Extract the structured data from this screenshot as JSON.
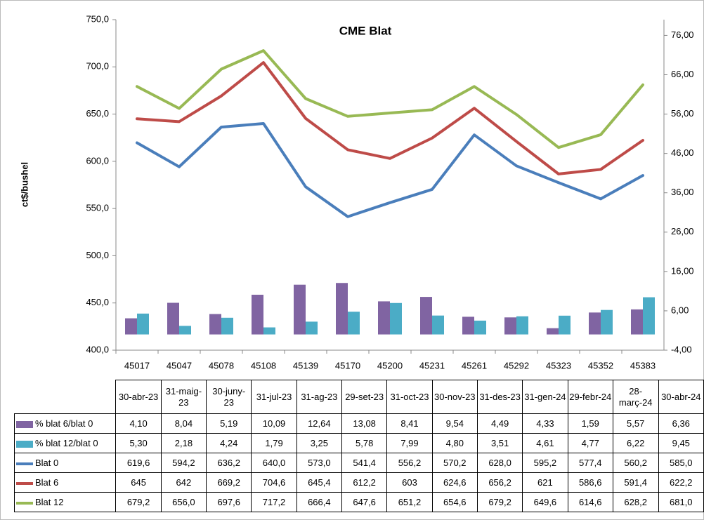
{
  "chart_data": {
    "type": "combo",
    "title": "CME  Blat",
    "y_label": "ct$/bushel",
    "categories": [
      "45017",
      "45047",
      "45078",
      "45108",
      "45139",
      "45170",
      "45200",
      "45231",
      "45261",
      "45292",
      "45323",
      "45352",
      "45383"
    ],
    "dates": [
      "30-abr-23",
      "31-maig-23",
      "30-juny-23",
      "31-jul-23",
      "31-ag-23",
      "29-set-23",
      "31-oct-23",
      "30-nov-23",
      "31-des-23",
      "31-gen-24",
      "29-febr-24",
      "28-març-24",
      "30-abr-24"
    ],
    "ylim": [
      400,
      750
    ],
    "yticks": [
      {
        "value": 400,
        "label": "400,0"
      },
      {
        "value": 450,
        "label": "450,0"
      },
      {
        "value": 500,
        "label": "500,0"
      },
      {
        "value": 550,
        "label": "550,0"
      },
      {
        "value": 600,
        "label": "600,0"
      },
      {
        "value": 650,
        "label": "650,0"
      },
      {
        "value": 700,
        "label": "700,0"
      },
      {
        "value": 750,
        "label": "750,0"
      }
    ],
    "y2lim": [
      -4,
      80
    ],
    "y2ticks": [
      {
        "value": -4,
        "label": "-4,00"
      },
      {
        "value": 6,
        "label": "6,00"
      },
      {
        "value": 16,
        "label": "16,00"
      },
      {
        "value": 26,
        "label": "26,00"
      },
      {
        "value": 36,
        "label": "36,00"
      },
      {
        "value": 46,
        "label": "46,00"
      },
      {
        "value": 56,
        "label": "56,00"
      },
      {
        "value": 66,
        "label": "66,00"
      },
      {
        "value": 76,
        "label": "76,00"
      }
    ],
    "series": [
      {
        "name": "% blat 6/blat 0",
        "type": "bar",
        "axis": "y2",
        "color": "#8064a2",
        "values": [
          4.1,
          8.04,
          5.19,
          10.09,
          12.64,
          13.08,
          8.41,
          9.54,
          4.49,
          4.33,
          1.59,
          5.57,
          6.36
        ],
        "value_labels": [
          "4,10",
          "8,04",
          "5,19",
          "10,09",
          "12,64",
          "13,08",
          "8,41",
          "9,54",
          "4,49",
          "4,33",
          "1,59",
          "5,57",
          "6,36"
        ]
      },
      {
        "name": "% blat 12/blat 0",
        "type": "bar",
        "axis": "y2",
        "color": "#4bacc6",
        "values": [
          5.3,
          2.18,
          4.24,
          1.79,
          3.25,
          5.78,
          7.99,
          4.8,
          3.51,
          4.61,
          4.77,
          6.22,
          9.45
        ],
        "value_labels": [
          "5,30",
          "2,18",
          "4,24",
          "1,79",
          "3,25",
          "5,78",
          "7,99",
          "4,80",
          "3,51",
          "4,61",
          "4,77",
          "6,22",
          "9,45"
        ]
      },
      {
        "name": "Blat 0",
        "type": "line",
        "color": "#4a7ebb",
        "values": [
          619.6,
          594.2,
          636.2,
          640.0,
          573.0,
          541.4,
          556.2,
          570.2,
          628.0,
          595.2,
          577.4,
          560.2,
          585.0
        ],
        "value_labels": [
          "619,6",
          "594,2",
          "636,2",
          "640,0",
          "573,0",
          "541,4",
          "556,2",
          "570,2",
          "628,0",
          "595,2",
          "577,4",
          "560,2",
          "585,0"
        ]
      },
      {
        "name": "Blat 6",
        "type": "line",
        "color": "#be4b48",
        "values": [
          645,
          642,
          669.2,
          704.6,
          645.4,
          612.2,
          603,
          624.6,
          656.2,
          621,
          586.6,
          591.4,
          622.2
        ],
        "value_labels": [
          "645",
          "642",
          "669,2",
          "704,6",
          "645,4",
          "612,2",
          "603",
          "624,6",
          "656,2",
          "621",
          "586,6",
          "591,4",
          "622,2"
        ]
      },
      {
        "name": "Blat 12",
        "type": "line",
        "color": "#98b954",
        "values": [
          679.2,
          656.0,
          697.6,
          717.2,
          666.4,
          647.6,
          651.2,
          654.6,
          679.2,
          649.6,
          614.6,
          628.2,
          681.0
        ],
        "value_labels": [
          "679,2",
          "656,0",
          "697,6",
          "717,2",
          "666,4",
          "647,6",
          "651,2",
          "654,6",
          "679,2",
          "649,6",
          "614,6",
          "628,2",
          "681,0"
        ]
      }
    ]
  }
}
